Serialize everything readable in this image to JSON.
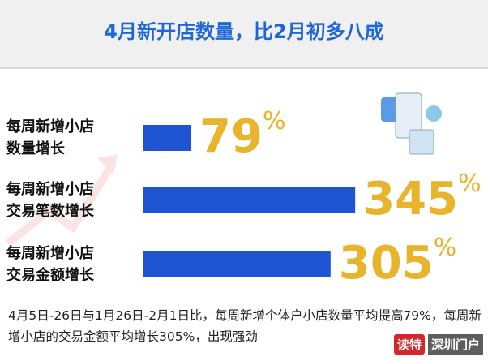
{
  "chart_data": {
    "type": "bar",
    "title": "4月新开店数量，比2月初多八成",
    "categories": [
      [
        "每周新增小店",
        "数量增长"
      ],
      [
        "每周新增小店",
        "交易笔数增长"
      ],
      [
        "每周新增小店",
        "交易金额增长"
      ]
    ],
    "values": [
      79,
      345,
      305
    ],
    "value_labels": [
      "79%",
      "345%",
      "305%"
    ],
    "color": "#1f55d0",
    "label_color": "#e7b42c",
    "note": "4月5日-26日与1月26日-2月1日比，每周新增个体户小店数量平均提高79%，每周新增小店的交易金额平均增长305%，出现强劲",
    "logo": [
      "读特",
      "深圳门户"
    ]
  }
}
